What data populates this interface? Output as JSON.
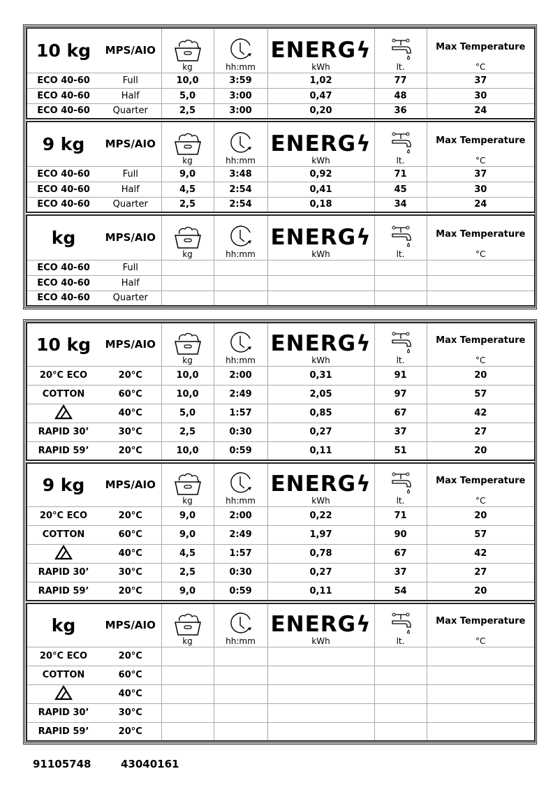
{
  "headers": {
    "mode": "MPS/AIO",
    "kg_unit": "kg",
    "time_unit": "hh:mm",
    "energy_label": "ENERG",
    "energy_unit": "kWh",
    "water_unit": "lt.",
    "temp_label": "Max Temperature",
    "temp_unit": "°C",
    "icons": [
      "laundry-basket-icon",
      "clock-icon",
      "energy-bolt-icon",
      "water-tap-icon"
    ]
  },
  "groups": [
    {
      "sections": [
        {
          "capacity": "10 kg",
          "rows": [
            [
              "ECO 40-60",
              "Full",
              "10,0",
              "3:59",
              "1,02",
              "77",
              "37"
            ],
            [
              "ECO 40-60",
              "Half",
              "5,0",
              "3:00",
              "0,47",
              "48",
              "30"
            ],
            [
              "ECO 40-60",
              "Quarter",
              "2,5",
              "3:00",
              "0,20",
              "36",
              "24"
            ]
          ]
        },
        {
          "capacity": "9 kg",
          "rows": [
            [
              "ECO 40-60",
              "Full",
              "9,0",
              "3:48",
              "0,92",
              "71",
              "37"
            ],
            [
              "ECO 40-60",
              "Half",
              "4,5",
              "2:54",
              "0,41",
              "45",
              "30"
            ],
            [
              "ECO 40-60",
              "Quarter",
              "2,5",
              "2:54",
              "0,18",
              "34",
              "24"
            ]
          ]
        },
        {
          "capacity": "kg",
          "rows": [
            [
              "ECO 40-60",
              "Full",
              "",
              "",
              "",
              "",
              ""
            ],
            [
              "ECO 40-60",
              "Half",
              "",
              "",
              "",
              "",
              ""
            ],
            [
              "ECO 40-60",
              "Quarter",
              "",
              "",
              "",
              "",
              ""
            ]
          ]
        }
      ]
    },
    {
      "sections": [
        {
          "capacity": "10 kg",
          "rows": [
            [
              "20°C ECO",
              "20°C",
              "10,0",
              "2:00",
              "0,31",
              "91",
              "20"
            ],
            [
              "COTTON",
              "60°C",
              "10,0",
              "2:49",
              "2,05",
              "97",
              "57"
            ],
            [
              "delicate-triangle-icon",
              "40°C",
              "5,0",
              "1:57",
              "0,85",
              "67",
              "42"
            ],
            [
              "RAPID 30’",
              "30°C",
              "2,5",
              "0:30",
              "0,27",
              "37",
              "27"
            ],
            [
              "RAPID 59’",
              "20°C",
              "10,0",
              "0:59",
              "0,11",
              "51",
              "20"
            ]
          ]
        },
        {
          "capacity": "9 kg",
          "rows": [
            [
              "20°C ECO",
              "20°C",
              "9,0",
              "2:00",
              "0,22",
              "71",
              "20"
            ],
            [
              "COTTON",
              "60°C",
              "9,0",
              "2:49",
              "1,97",
              "90",
              "57"
            ],
            [
              "delicate-triangle-icon",
              "40°C",
              "4,5",
              "1:57",
              "0,78",
              "67",
              "42"
            ],
            [
              "RAPID 30’",
              "30°C",
              "2,5",
              "0:30",
              "0,27",
              "37",
              "27"
            ],
            [
              "RAPID 59’",
              "20°C",
              "9,0",
              "0:59",
              "0,11",
              "54",
              "20"
            ]
          ]
        },
        {
          "capacity": "kg",
          "rows": [
            [
              "20°C ECO",
              "20°C",
              "",
              "",
              "",
              "",
              ""
            ],
            [
              "COTTON",
              "60°C",
              "",
              "",
              "",
              "",
              ""
            ],
            [
              "delicate-triangle-icon",
              "40°C",
              "",
              "",
              "",
              "",
              ""
            ],
            [
              "RAPID 30’",
              "30°C",
              "",
              "",
              "",
              "",
              ""
            ],
            [
              "RAPID 59’",
              "20°C",
              "",
              "",
              "",
              "",
              ""
            ]
          ]
        }
      ]
    }
  ],
  "footer": {
    "code1": "91105748",
    "code2": "43040161"
  }
}
